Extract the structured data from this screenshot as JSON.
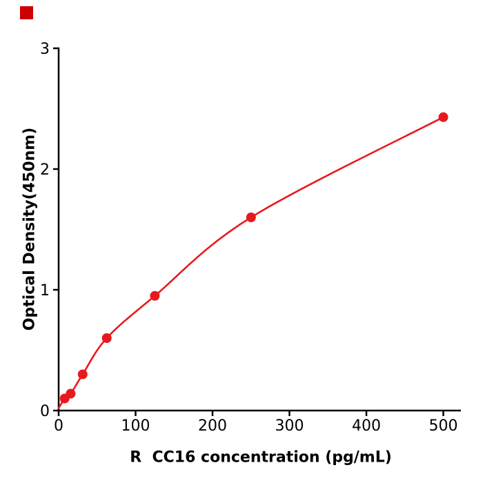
{
  "page": {
    "background": "#ffffff",
    "corner_marker_color": "#cc0000"
  },
  "chart_data": {
    "type": "line",
    "title": "",
    "xlabel": "R  CC16 concentration (pg/mL)",
    "ylabel": "Optical Density(450nm)",
    "x": [
      0,
      7.8,
      15.6,
      31.25,
      62.5,
      125,
      250,
      500
    ],
    "y": [
      0.02,
      0.1,
      0.14,
      0.3,
      0.6,
      0.95,
      1.6,
      2.43
    ],
    "xticks": [
      "0",
      "100",
      "200",
      "300",
      "400",
      "500"
    ],
    "yticks": [
      "0",
      "1",
      "2",
      "3"
    ],
    "xlim": [
      0,
      523
    ],
    "ylim": [
      0,
      3
    ],
    "grid": false,
    "legend": null,
    "line_color": "#e8191c",
    "marker_color": "#e8191c",
    "axis_color": "#000000",
    "marker_at_origin": false
  }
}
